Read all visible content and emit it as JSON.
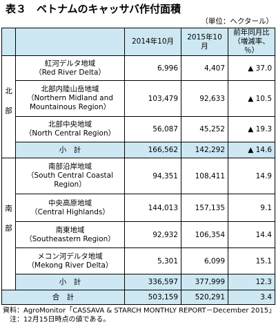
{
  "title": "表３　ベトナムのキャッサバ作付面積",
  "unit": "（単位：ヘクタール）",
  "table": {
    "headers": [
      "2014年10月",
      "2015年10月",
      [
        "前年同月比",
        "（増減率、％）"
      ]
    ],
    "groups": [
      {
        "label": "北部",
        "rows": [
          {
            "name": [
              "紅河デルタ地域",
              "（Red River Delta）"
            ],
            "cells": [
              "6,996",
              "4,407",
              "▲ 37.0"
            ]
          },
          {
            "name": [
              "北部内陸山岳地域",
              "（Northern Midland and",
              "Mountainous Region）"
            ],
            "cells": [
              "103,479",
              "92,633",
              "▲ 10.5"
            ]
          },
          {
            "name": [
              "北部中央地域",
              "（North Central Region）"
            ],
            "cells": [
              "56,087",
              "45,252",
              "▲ 19.3"
            ]
          }
        ],
        "subtotal": {
          "label": "小　計",
          "cells": [
            "166,562",
            "142,292",
            "▲ 14.6"
          ]
        }
      },
      {
        "label": "南部",
        "rows": [
          {
            "name": [
              "南部沿岸地域",
              "（South Central Coastal",
              "Region）"
            ],
            "cells": [
              "94,351",
              "108,411",
              "14.9"
            ]
          },
          {
            "name": [
              "中央高原地域",
              "（Central Highlands）"
            ],
            "cells": [
              "144,013",
              "157,135",
              "9.1"
            ]
          },
          {
            "name": [
              "南東地域",
              "（Southeastern Region）"
            ],
            "cells": [
              "92,932",
              "106,354",
              "14.4"
            ]
          },
          {
            "name": [
              "メコン河デルタ地域",
              "（Mekong River Delta）"
            ],
            "cells": [
              "5,301",
              "6,099",
              "15.1"
            ]
          }
        ],
        "subtotal": {
          "label": "小　計",
          "cells": [
            "336,597",
            "377,999",
            "12.3"
          ]
        }
      }
    ],
    "total": {
      "label": "合　計",
      "cells": [
        "503,159",
        "520,291",
        "3.4"
      ]
    }
  },
  "source": "資料：AgroMonitor「CASSAVA & STARCH MONTHLY REPORT－December 2015」",
  "note": "注：12月15日時点の値である。"
}
